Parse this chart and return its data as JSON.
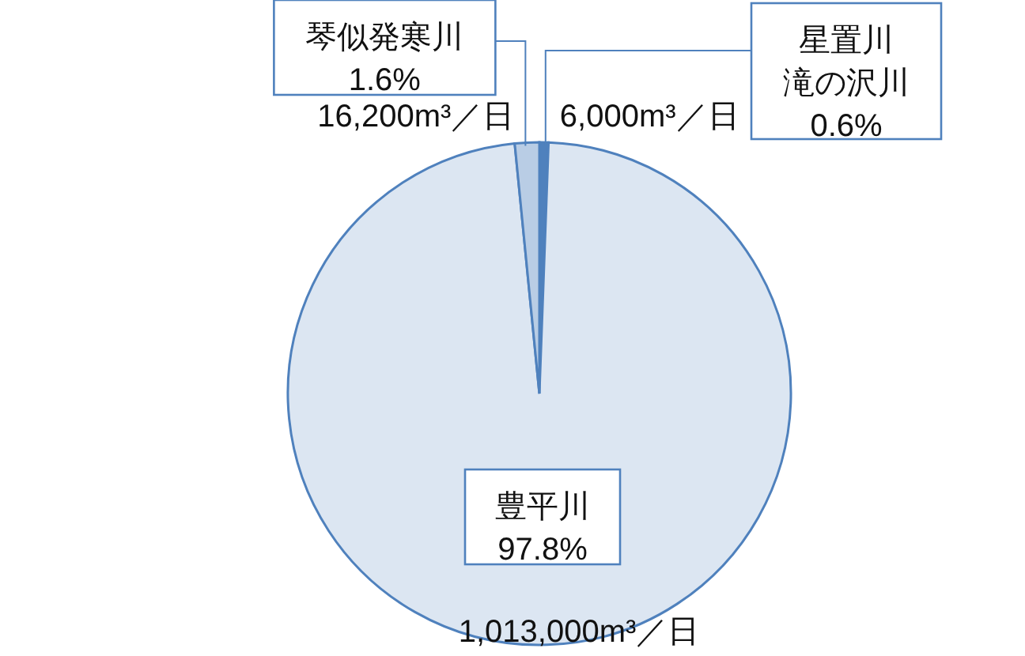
{
  "chart_data": {
    "type": "pie",
    "categories": [
      "星置川滝の沢川",
      "豊平川",
      "琴似発寒川"
    ],
    "values": [
      6000,
      1013000,
      16200
    ],
    "colors": [
      "#4f81bd",
      "#dce6f2",
      "#b9cde5"
    ],
    "value_labels": [
      "6,000m³／日",
      "1,013,000m³／日",
      "16,200m³／日"
    ],
    "annotations": [
      "0.6%",
      "97.8%",
      "1.6%"
    ],
    "legend": false
  }
}
